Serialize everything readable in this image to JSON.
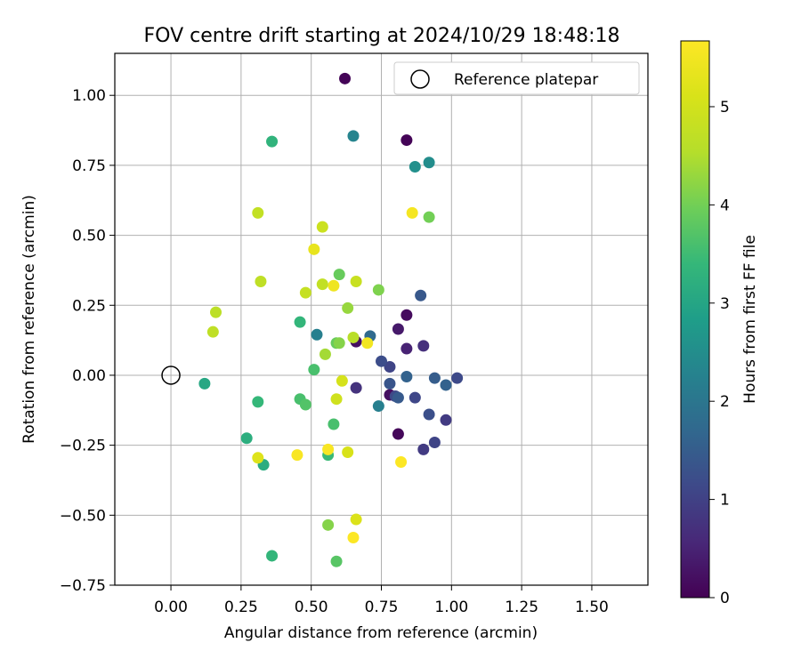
{
  "chart_data": {
    "type": "scatter",
    "title": "FOV centre drift starting at 2024/10/29 18:48:18",
    "xlabel": "Angular distance from reference (arcmin)",
    "ylabel": "Rotation from reference (arcmin)",
    "xlim": [
      -0.2,
      1.7
    ],
    "ylim": [
      -0.75,
      1.15
    ],
    "x_ticks": [
      0.0,
      0.25,
      0.5,
      0.75,
      1.0,
      1.25,
      1.5
    ],
    "x_tick_labels": [
      "0.00",
      "0.25",
      "0.50",
      "0.75",
      "1.00",
      "1.25",
      "1.50"
    ],
    "y_ticks": [
      -0.75,
      -0.5,
      -0.25,
      0.0,
      0.25,
      0.5,
      0.75,
      1.0
    ],
    "y_tick_labels": [
      "−0.75",
      "−0.50",
      "−0.25",
      "0.00",
      "0.25",
      "0.50",
      "0.75",
      "1.00"
    ],
    "grid": true,
    "legend": {
      "location": "top-right",
      "entries": [
        "Reference platepar"
      ]
    },
    "reference_point": {
      "x": 0.0,
      "y": 0.0,
      "label": "Reference platepar"
    },
    "colorbar": {
      "label": "Hours from first FF file",
      "colormap": "viridis",
      "range": [
        0,
        5.67
      ],
      "ticks": [
        0,
        1,
        2,
        3,
        4,
        5
      ],
      "tick_labels": [
        "0",
        "1",
        "2",
        "3",
        "4",
        "5"
      ]
    },
    "points": [
      {
        "x": 0.62,
        "y": 1.06,
        "h": 0.05
      },
      {
        "x": 0.84,
        "y": 0.84,
        "h": 0.05
      },
      {
        "x": 0.84,
        "y": 0.215,
        "h": 0.15
      },
      {
        "x": 0.81,
        "y": 0.165,
        "h": 0.35
      },
      {
        "x": 0.84,
        "y": 0.095,
        "h": 0.5
      },
      {
        "x": 0.9,
        "y": 0.105,
        "h": 0.7
      },
      {
        "x": 0.66,
        "y": 0.12,
        "h": 0.2
      },
      {
        "x": 0.66,
        "y": -0.045,
        "h": 0.75
      },
      {
        "x": 0.78,
        "y": -0.07,
        "h": 0.2
      },
      {
        "x": 0.81,
        "y": -0.21,
        "h": 0.1
      },
      {
        "x": 0.9,
        "y": -0.265,
        "h": 0.9
      },
      {
        "x": 0.94,
        "y": -0.24,
        "h": 1.05
      },
      {
        "x": 0.98,
        "y": -0.16,
        "h": 0.9
      },
      {
        "x": 0.92,
        "y": -0.14,
        "h": 1.25
      },
      {
        "x": 0.87,
        "y": -0.08,
        "h": 1.1
      },
      {
        "x": 0.8,
        "y": -0.075,
        "h": 1.15
      },
      {
        "x": 0.78,
        "y": 0.03,
        "h": 1.05
      },
      {
        "x": 0.75,
        "y": 0.05,
        "h": 1.2
      },
      {
        "x": 0.78,
        "y": -0.03,
        "h": 1.35
      },
      {
        "x": 0.81,
        "y": -0.08,
        "h": 1.45
      },
      {
        "x": 0.84,
        "y": -0.005,
        "h": 1.6
      },
      {
        "x": 0.94,
        "y": -0.01,
        "h": 1.5
      },
      {
        "x": 0.98,
        "y": -0.035,
        "h": 1.6
      },
      {
        "x": 1.02,
        "y": -0.01,
        "h": 1.15
      },
      {
        "x": 0.89,
        "y": 0.285,
        "h": 1.4
      },
      {
        "x": 0.71,
        "y": 0.14,
        "h": 1.75
      },
      {
        "x": 0.74,
        "y": -0.11,
        "h": 2.2
      },
      {
        "x": 0.52,
        "y": 0.145,
        "h": 2.2
      },
      {
        "x": 0.65,
        "y": 0.855,
        "h": 2.3
      },
      {
        "x": 0.87,
        "y": 0.745,
        "h": 2.55
      },
      {
        "x": 0.92,
        "y": 0.76,
        "h": 2.5
      },
      {
        "x": 0.36,
        "y": 0.835,
        "h": 3.3
      },
      {
        "x": 0.12,
        "y": -0.03,
        "h": 3.05
      },
      {
        "x": 0.27,
        "y": -0.225,
        "h": 3.2
      },
      {
        "x": 0.31,
        "y": -0.095,
        "h": 3.4
      },
      {
        "x": 0.33,
        "y": -0.32,
        "h": 3.15
      },
      {
        "x": 0.36,
        "y": -0.645,
        "h": 3.35
      },
      {
        "x": 0.46,
        "y": 0.19,
        "h": 3.35
      },
      {
        "x": 0.51,
        "y": 0.02,
        "h": 3.6
      },
      {
        "x": 0.46,
        "y": -0.085,
        "h": 3.6
      },
      {
        "x": 0.48,
        "y": -0.105,
        "h": 3.7
      },
      {
        "x": 0.56,
        "y": -0.285,
        "h": 3.45
      },
      {
        "x": 0.58,
        "y": -0.175,
        "h": 3.6
      },
      {
        "x": 0.59,
        "y": 0.115,
        "h": 3.9
      },
      {
        "x": 0.6,
        "y": 0.36,
        "h": 3.9
      },
      {
        "x": 0.59,
        "y": -0.665,
        "h": 3.75
      },
      {
        "x": 0.92,
        "y": 0.565,
        "h": 4.0
      },
      {
        "x": 0.74,
        "y": 0.305,
        "h": 4.1
      },
      {
        "x": 0.56,
        "y": -0.535,
        "h": 4.15
      },
      {
        "x": 0.6,
        "y": 0.115,
        "h": 4.15
      },
      {
        "x": 0.63,
        "y": 0.24,
        "h": 4.3
      },
      {
        "x": 0.55,
        "y": 0.075,
        "h": 4.4
      },
      {
        "x": 0.65,
        "y": 0.135,
        "h": 4.6
      },
      {
        "x": 0.16,
        "y": 0.225,
        "h": 4.65
      },
      {
        "x": 0.15,
        "y": 0.155,
        "h": 4.7
      },
      {
        "x": 0.31,
        "y": 0.58,
        "h": 4.75
      },
      {
        "x": 0.32,
        "y": 0.335,
        "h": 4.7
      },
      {
        "x": 0.48,
        "y": 0.295,
        "h": 4.8
      },
      {
        "x": 0.54,
        "y": 0.325,
        "h": 4.75
      },
      {
        "x": 0.54,
        "y": 0.53,
        "h": 4.9
      },
      {
        "x": 0.66,
        "y": 0.335,
        "h": 4.85
      },
      {
        "x": 0.59,
        "y": -0.085,
        "h": 4.95
      },
      {
        "x": 0.61,
        "y": -0.02,
        "h": 5.05
      },
      {
        "x": 0.63,
        "y": -0.275,
        "h": 5.1
      },
      {
        "x": 0.66,
        "y": -0.515,
        "h": 5.15
      },
      {
        "x": 0.31,
        "y": -0.295,
        "h": 5.2
      },
      {
        "x": 0.51,
        "y": 0.45,
        "h": 5.35
      },
      {
        "x": 0.58,
        "y": 0.32,
        "h": 5.45
      },
      {
        "x": 0.7,
        "y": 0.115,
        "h": 5.5
      },
      {
        "x": 0.86,
        "y": 0.58,
        "h": 5.55
      },
      {
        "x": 0.45,
        "y": -0.285,
        "h": 5.6
      },
      {
        "x": 0.56,
        "y": -0.265,
        "h": 5.6
      },
      {
        "x": 0.65,
        "y": -0.58,
        "h": 5.65
      },
      {
        "x": 0.82,
        "y": -0.31,
        "h": 5.65
      }
    ]
  }
}
